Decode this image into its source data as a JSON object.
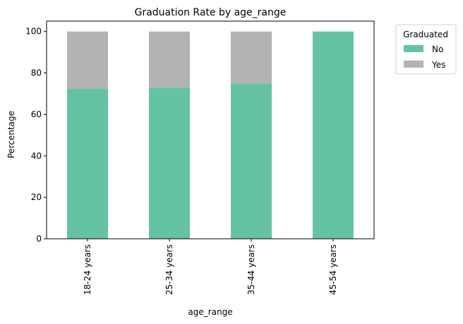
{
  "chart_data": {
    "type": "bar",
    "stacked": true,
    "title": "Graduation Rate by age_range",
    "xlabel": "age_range",
    "ylabel": "Percentage",
    "ylim": [
      0,
      105
    ],
    "yticks": [
      0,
      20,
      40,
      60,
      80,
      100
    ],
    "categories": [
      "18-24 years",
      "25-34 years",
      "35-44 years",
      "45-54 years"
    ],
    "series": [
      {
        "name": "No",
        "color": "#66c2a5",
        "values": [
          72.5,
          73,
          75,
          100
        ]
      },
      {
        "name": "Yes",
        "color": "#b3b3b3",
        "values": [
          27.5,
          27,
          25,
          0
        ]
      }
    ],
    "legend": {
      "title": "Graduated",
      "placement": "outside-top-right"
    },
    "grid": false
  }
}
